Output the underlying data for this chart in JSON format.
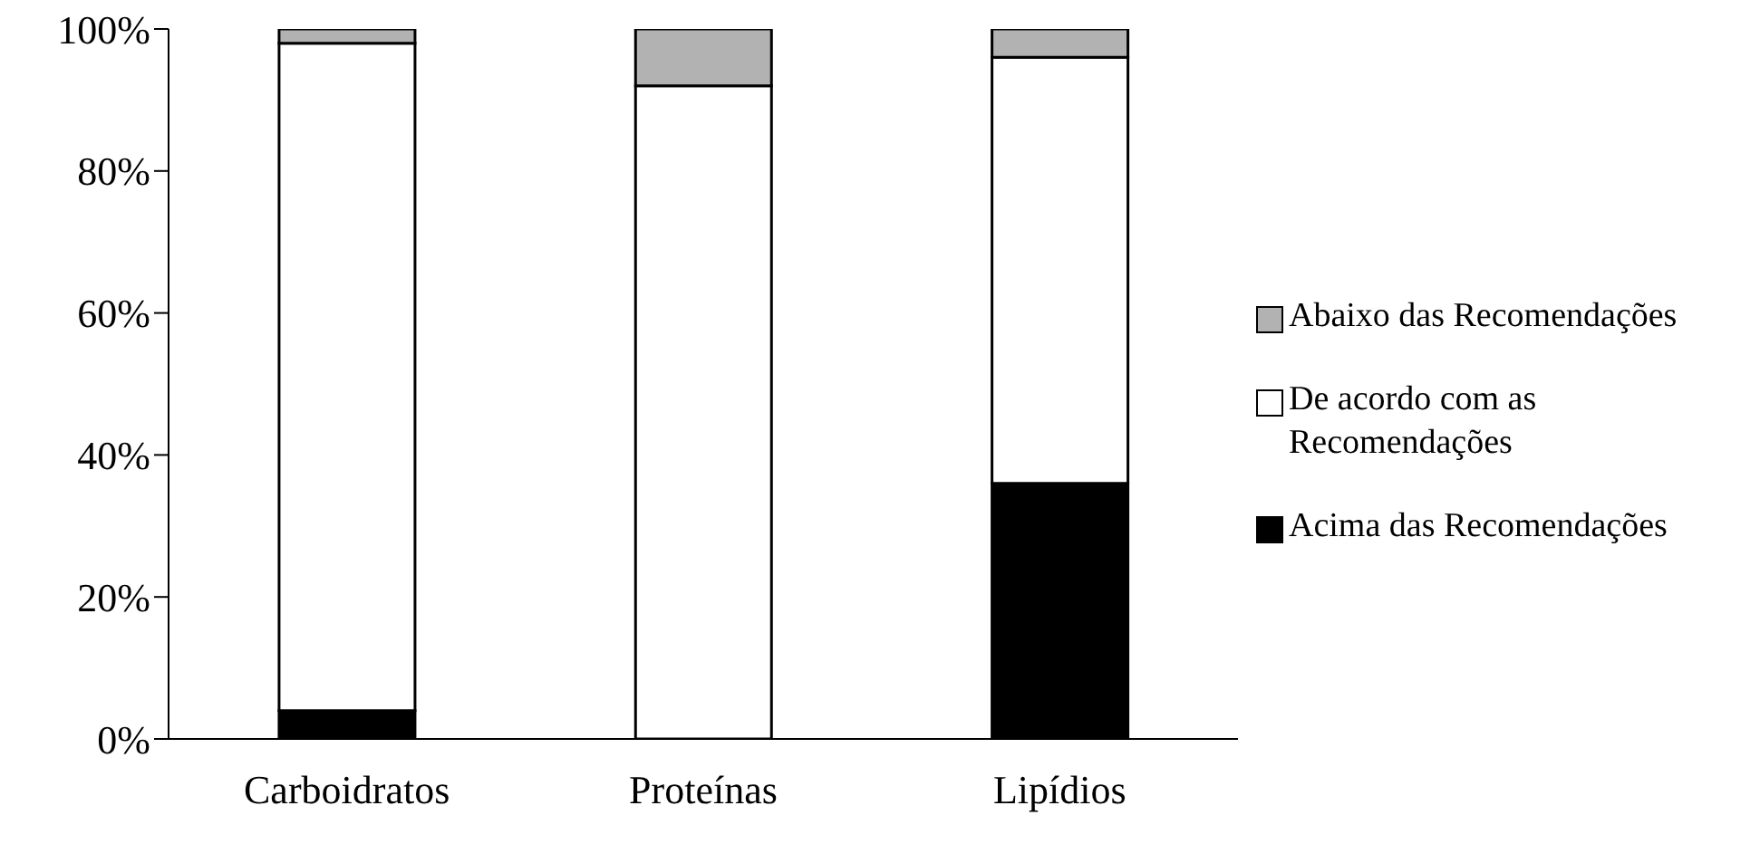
{
  "chart_data": {
    "type": "bar",
    "stacked": true,
    "categories": [
      "Carboidratos",
      "Proteínas",
      "Lipídios"
    ],
    "series": [
      {
        "name": "Acima das Recomendações",
        "color": "#000000",
        "values": [
          4,
          0,
          36
        ]
      },
      {
        "name": "De acordo com as Recomendações",
        "color": "#ffffff",
        "values": [
          94,
          92,
          60
        ]
      },
      {
        "name": "Abaixo das Recomendações",
        "color": "#b2b2b2",
        "values": [
          2,
          8,
          4
        ]
      }
    ],
    "ylim": [
      0,
      100
    ],
    "yticks": [
      {
        "value": 0,
        "label": "0%"
      },
      {
        "value": 20,
        "label": "20%"
      },
      {
        "value": 40,
        "label": "40%"
      },
      {
        "value": 60,
        "label": "60%"
      },
      {
        "value": 80,
        "label": "80%"
      },
      {
        "value": 100,
        "label": "100%"
      }
    ],
    "grid": false,
    "legend": "right"
  }
}
